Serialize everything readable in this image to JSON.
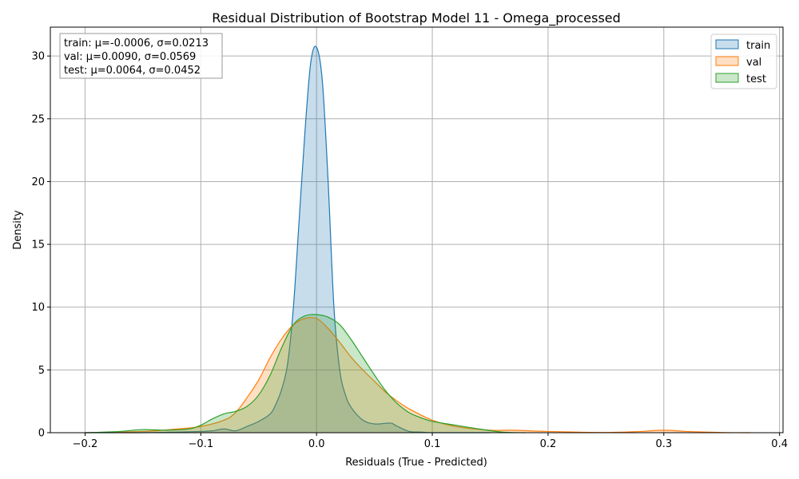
{
  "chart_data": {
    "type": "area",
    "title": "Residual Distribution of Bootstrap Model 11 - Omega_processed",
    "xlabel": "Residuals (True - Predicted)",
    "ylabel": "Density",
    "xlim": [
      -0.23,
      0.403
    ],
    "ylim": [
      0,
      32.3
    ],
    "xticks": [
      -0.2,
      -0.1,
      0.0,
      0.1,
      0.2,
      0.3,
      0.4
    ],
    "xtick_labels": [
      "−0.2",
      "−0.1",
      "0.0",
      "0.1",
      "0.2",
      "0.3",
      "0.4"
    ],
    "yticks": [
      0,
      5,
      10,
      15,
      20,
      25,
      30
    ],
    "ytick_labels": [
      "0",
      "5",
      "10",
      "15",
      "20",
      "25",
      "30"
    ],
    "grid": true,
    "legend_position": "top-right",
    "stats_box": [
      "train: μ=-0.0006, σ=0.0213",
      "val: μ=0.0090, σ=0.0569",
      "test: μ=0.0064, σ=0.0452"
    ],
    "series": [
      {
        "name": "train",
        "color": "#1f77b4",
        "x": [
          -0.2,
          -0.15,
          -0.12,
          -0.1,
          -0.09,
          -0.08,
          -0.07,
          -0.06,
          -0.05,
          -0.04,
          -0.035,
          -0.03,
          -0.025,
          -0.02,
          -0.015,
          -0.01,
          -0.005,
          0.0,
          0.005,
          0.01,
          0.015,
          0.02,
          0.025,
          0.03,
          0.04,
          0.05,
          0.06,
          0.065,
          0.07,
          0.08,
          0.09,
          0.1,
          0.12,
          0.15
        ],
        "y": [
          0,
          0,
          0.05,
          0.1,
          0.15,
          0.3,
          0.15,
          0.5,
          0.9,
          1.5,
          2.3,
          3.5,
          5.5,
          10,
          17,
          24,
          29.5,
          30.7,
          28,
          20,
          10,
          5,
          3,
          2,
          1,
          0.7,
          0.75,
          0.75,
          0.5,
          0.1,
          0.05,
          0,
          0,
          0
        ]
      },
      {
        "name": "val",
        "color": "#ff7f0e",
        "x": [
          -0.2,
          -0.15,
          -0.12,
          -0.1,
          -0.08,
          -0.07,
          -0.06,
          -0.05,
          -0.04,
          -0.03,
          -0.02,
          -0.01,
          0.0,
          0.01,
          0.02,
          0.03,
          0.04,
          0.05,
          0.06,
          0.07,
          0.08,
          0.1,
          0.12,
          0.15,
          0.17,
          0.2,
          0.25,
          0.28,
          0.3,
          0.32,
          0.35,
          0.375
        ],
        "y": [
          0,
          0.1,
          0.3,
          0.5,
          1.0,
          1.6,
          2.8,
          4.2,
          6.0,
          7.5,
          8.6,
          9.1,
          9.1,
          8.3,
          7.2,
          6.0,
          5.0,
          4.1,
          3.2,
          2.5,
          1.9,
          1.0,
          0.5,
          0.2,
          0.2,
          0.1,
          0.02,
          0.1,
          0.2,
          0.1,
          0.02,
          0
        ]
      },
      {
        "name": "test",
        "color": "#2ca02c",
        "x": [
          -0.2,
          -0.17,
          -0.15,
          -0.13,
          -0.11,
          -0.1,
          -0.09,
          -0.08,
          -0.07,
          -0.06,
          -0.05,
          -0.04,
          -0.03,
          -0.02,
          -0.01,
          0.0,
          0.01,
          0.02,
          0.03,
          0.04,
          0.05,
          0.06,
          0.07,
          0.08,
          0.09,
          0.1,
          0.12,
          0.14,
          0.16,
          0.18
        ],
        "y": [
          0,
          0.1,
          0.25,
          0.2,
          0.3,
          0.6,
          1.1,
          1.5,
          1.7,
          2.1,
          3.0,
          4.6,
          6.8,
          8.6,
          9.3,
          9.4,
          9.2,
          8.6,
          7.4,
          6.0,
          4.6,
          3.3,
          2.3,
          1.6,
          1.2,
          0.9,
          0.6,
          0.3,
          0.05,
          0
        ]
      }
    ]
  }
}
